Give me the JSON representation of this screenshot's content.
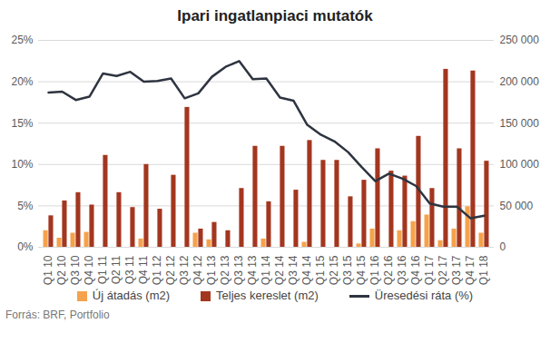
{
  "chart_data": {
    "type": "bar",
    "title": "Ipari ingatlanpiaci mutatók",
    "source": "Forrás: BRF, Portfolio",
    "categories": [
      "Q1 10",
      "Q2 10",
      "Q3 10",
      "Q4 10",
      "Q1 11",
      "Q2 11",
      "Q3 11",
      "Q4 11",
      "Q1 12",
      "Q2 12",
      "Q3 12",
      "Q4 12",
      "Q1 13",
      "Q2 13",
      "Q3 13",
      "Q4 13",
      "Q1 14",
      "Q2 14",
      "Q3 14",
      "Q4 14",
      "Q1 15",
      "Q2 15",
      "Q3 15",
      "Q4 15",
      "Q1 16",
      "Q2 16",
      "Q3 16",
      "Q4 16",
      "Q1 17",
      "Q2 17",
      "Q3 17",
      "Q4 17",
      "Q1 18"
    ],
    "series": [
      {
        "name": "Új átadás (m2)",
        "type": "bar",
        "axis": "y2",
        "color": "#f5a24c",
        "values": [
          20000,
          11000,
          17000,
          18000,
          0,
          0,
          0,
          10000,
          0,
          0,
          0,
          17000,
          9000,
          0,
          0,
          0,
          10000,
          0,
          0,
          6000,
          0,
          0,
          0,
          4000,
          22000,
          0,
          20000,
          31000,
          39000,
          8000,
          22000,
          49000,
          17000
        ]
      },
      {
        "name": "Teljes kereslet (m2)",
        "type": "bar",
        "axis": "y2",
        "color": "#a3361f",
        "values": [
          38000,
          56000,
          66000,
          51000,
          111000,
          66000,
          48000,
          100000,
          46000,
          87000,
          169000,
          22000,
          30000,
          20000,
          71000,
          122000,
          55000,
          122000,
          69000,
          129000,
          105000,
          105000,
          61000,
          81000,
          119000,
          92000,
          86000,
          134000,
          71000,
          215000,
          119000,
          213000,
          104000
        ]
      },
      {
        "name": "Üresedési ráta (%)",
        "type": "line",
        "color": "#2e3440",
        "marker": "none",
        "line_style": "solid",
        "values": [
          18.7,
          18.8,
          17.8,
          18.2,
          21.0,
          20.7,
          21.2,
          20.0,
          20.1,
          20.4,
          18.0,
          18.6,
          20.6,
          21.8,
          22.5,
          20.3,
          20.4,
          18.1,
          17.7,
          14.8,
          13.6,
          12.8,
          11.5,
          9.7,
          8.0,
          8.9,
          8.3,
          7.4,
          5.3,
          4.9,
          4.9,
          3.5,
          3.8
        ]
      }
    ],
    "ylim": [
      0,
      25
    ],
    "yticks": [
      {
        "value": 0,
        "label": "0%"
      },
      {
        "value": 5,
        "label": "5%"
      },
      {
        "value": 10,
        "label": "10%"
      },
      {
        "value": 15,
        "label": "15%"
      },
      {
        "value": 20,
        "label": "20%"
      },
      {
        "value": 25,
        "label": "25%"
      }
    ],
    "y2lim": [
      0,
      250000
    ],
    "y2ticks": [
      0,
      {
        "value": 50000,
        "label": "50 000"
      },
      {
        "value": 100000,
        "label": "100 000"
      },
      {
        "value": 150000,
        "label": "150 000"
      },
      {
        "value": 200000,
        "label": "200 000"
      },
      {
        "value": 250000,
        "label": "250 000"
      }
    ],
    "grid": true,
    "legend": "bottom"
  }
}
